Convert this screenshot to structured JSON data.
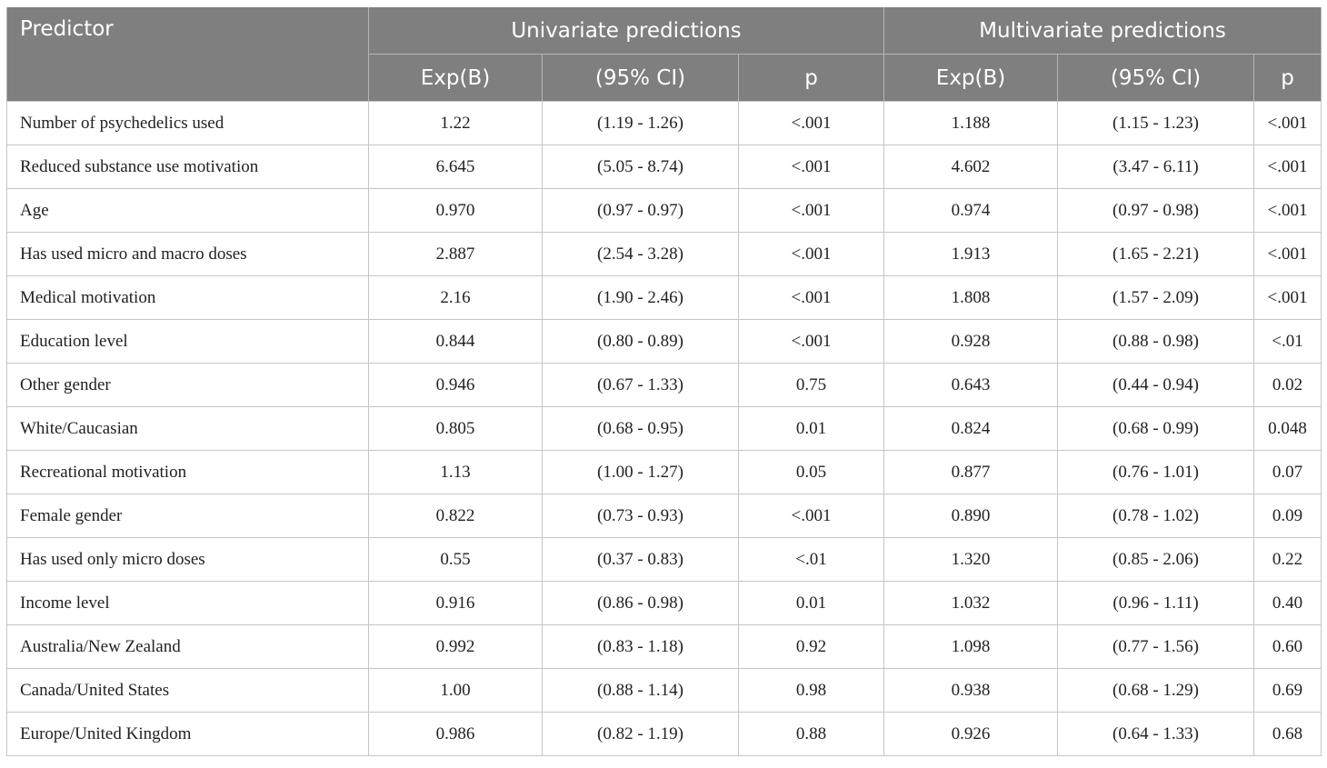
{
  "header": {
    "predictor": "Predictor",
    "univariate": "Univariate predictions",
    "multivariate": "Multivariate predictions",
    "expb": "Exp(B)",
    "ci": "(95% CI)",
    "p": "p"
  },
  "rows": [
    {
      "name": "Number of psychedelics used",
      "u_exp": "1.22",
      "u_ci": "(1.19 - 1.26)",
      "u_p": "<.001",
      "m_exp": "1.188",
      "m_ci": "(1.15 - 1.23)",
      "m_p": "<.001"
    },
    {
      "name": "Reduced substance use motivation",
      "u_exp": "6.645",
      "u_ci": "(5.05 - 8.74)",
      "u_p": "<.001",
      "m_exp": "4.602",
      "m_ci": "(3.47 - 6.11)",
      "m_p": "<.001"
    },
    {
      "name": "Age",
      "u_exp": "0.970",
      "u_ci": "(0.97 - 0.97)",
      "u_p": "<.001",
      "m_exp": "0.974",
      "m_ci": "(0.97 - 0.98)",
      "m_p": "<.001"
    },
    {
      "name": "Has used micro and macro doses",
      "u_exp": "2.887",
      "u_ci": "(2.54 - 3.28)",
      "u_p": "<.001",
      "m_exp": "1.913",
      "m_ci": "(1.65 - 2.21)",
      "m_p": "<.001"
    },
    {
      "name": "Medical motivation",
      "u_exp": "2.16",
      "u_ci": "(1.90 - 2.46)",
      "u_p": "<.001",
      "m_exp": "1.808",
      "m_ci": "(1.57 - 2.09)",
      "m_p": "<.001"
    },
    {
      "name": "Education level",
      "u_exp": "0.844",
      "u_ci": "(0.80 - 0.89)",
      "u_p": "<.001",
      "m_exp": "0.928",
      "m_ci": "(0.88 - 0.98)",
      "m_p": "<.01"
    },
    {
      "name": "Other gender",
      "u_exp": "0.946",
      "u_ci": "(0.67 - 1.33)",
      "u_p": "0.75",
      "m_exp": "0.643",
      "m_ci": "(0.44 - 0.94)",
      "m_p": "0.02"
    },
    {
      "name": "White/Caucasian",
      "u_exp": "0.805",
      "u_ci": "(0.68 - 0.95)",
      "u_p": "0.01",
      "m_exp": "0.824",
      "m_ci": "(0.68 - 0.99)",
      "m_p": "0.048"
    },
    {
      "name": "Recreational motivation",
      "u_exp": "1.13",
      "u_ci": "(1.00 - 1.27)",
      "u_p": "0.05",
      "m_exp": "0.877",
      "m_ci": "(0.76 - 1.01)",
      "m_p": "0.07"
    },
    {
      "name": "Female gender",
      "u_exp": "0.822",
      "u_ci": "(0.73 - 0.93)",
      "u_p": "<.001",
      "m_exp": "0.890",
      "m_ci": "(0.78 - 1.02)",
      "m_p": "0.09"
    },
    {
      "name": "Has used only micro doses",
      "u_exp": "0.55",
      "u_ci": "(0.37 - 0.83)",
      "u_p": "<.01",
      "m_exp": "1.320",
      "m_ci": "(0.85 - 2.06)",
      "m_p": "0.22"
    },
    {
      "name": "Income level",
      "u_exp": "0.916",
      "u_ci": "(0.86 - 0.98)",
      "u_p": "0.01",
      "m_exp": "1.032",
      "m_ci": "(0.96 - 1.11)",
      "m_p": "0.40"
    },
    {
      "name": "Australia/New Zealand",
      "u_exp": "0.992",
      "u_ci": "(0.83 - 1.18)",
      "u_p": "0.92",
      "m_exp": "1.098",
      "m_ci": "(0.77 - 1.56)",
      "m_p": "0.60"
    },
    {
      "name": "Canada/United States",
      "u_exp": "1.00",
      "u_ci": "(0.88 - 1.14)",
      "u_p": "0.98",
      "m_exp": "0.938",
      "m_ci": "(0.68 - 1.29)",
      "m_p": "0.69"
    },
    {
      "name": "Europe/United Kingdom",
      "u_exp": "0.986",
      "u_ci": "(0.82 - 1.19)",
      "u_p": "0.88",
      "m_exp": "0.926",
      "m_ci": "(0.64 - 1.33)",
      "m_p": "0.68"
    }
  ]
}
